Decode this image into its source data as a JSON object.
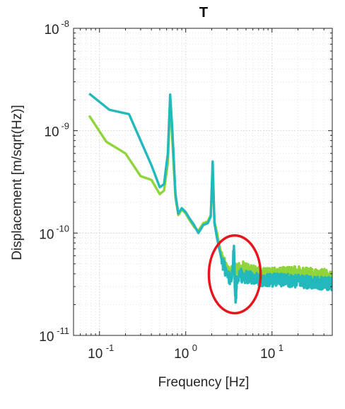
{
  "chart_data": {
    "type": "line",
    "title": "T",
    "xlabel": "Frequency [Hz]",
    "ylabel": "Displacement [m/sqrt(Hz)]",
    "x_scale": "log",
    "y_scale": "log",
    "xlim": [
      0.05,
      50
    ],
    "ylim": [
      1e-11,
      1e-08
    ],
    "grid": true,
    "minor_grid": true,
    "x_ticks": [
      {
        "value": 0.1,
        "base": "10",
        "exp": "-1"
      },
      {
        "value": 1,
        "base": "10",
        "exp": "0"
      },
      {
        "value": 10,
        "base": "10",
        "exp": "1"
      }
    ],
    "y_ticks": [
      {
        "value": 1e-11,
        "base": "10",
        "exp": "-11"
      },
      {
        "value": 1e-10,
        "base": "10",
        "exp": "-10"
      },
      {
        "value": 1e-09,
        "base": "10",
        "exp": "-9"
      },
      {
        "value": 1e-08,
        "base": "10",
        "exp": "-8"
      }
    ],
    "series": [
      {
        "color": "#8fd43a",
        "points": [
          [
            0.076,
            1.4e-09
          ],
          [
            0.12,
            7.8e-10
          ],
          [
            0.2,
            6e-10
          ],
          [
            0.3,
            3.6e-10
          ],
          [
            0.4,
            3.3e-10
          ],
          [
            0.5,
            2.4e-10
          ],
          [
            0.56,
            2.6e-10
          ],
          [
            0.62,
            4.8e-10
          ],
          [
            0.66,
            1.9e-09
          ],
          [
            0.7,
            8e-10
          ],
          [
            0.76,
            2.2e-10
          ],
          [
            0.82,
            1.5e-10
          ],
          [
            0.9,
            1.7e-10
          ],
          [
            1.0,
            1.55e-10
          ],
          [
            1.1,
            1.35e-10
          ],
          [
            1.25,
            1.15e-10
          ],
          [
            1.4,
            1.05e-10
          ],
          [
            1.6,
            1.25e-10
          ],
          [
            1.8,
            1.3e-10
          ],
          [
            1.95,
            1.5e-10
          ],
          [
            2.05,
            4.2e-10
          ],
          [
            2.15,
            1.3e-10
          ],
          [
            2.3,
            1e-10
          ],
          [
            2.6,
            6e-11
          ],
          [
            3.0,
            4.5e-11
          ],
          [
            3.3,
            4.2e-11
          ],
          [
            3.6,
            4.4e-11
          ],
          [
            4.0,
            4.3e-11
          ],
          [
            4.5,
            4.6e-11
          ],
          [
            5.0,
            4.4e-11
          ],
          [
            6.0,
            4.2e-11
          ],
          [
            8.0,
            3.9e-11
          ],
          [
            12.0,
            4e-11
          ],
          [
            20.0,
            4.1e-11
          ],
          [
            30.0,
            3.9e-11
          ],
          [
            50.0,
            3.8e-11
          ]
        ]
      },
      {
        "color": "#22b8bc",
        "points": [
          [
            0.076,
            2.3e-09
          ],
          [
            0.13,
            1.6e-09
          ],
          [
            0.22,
            1.45e-09
          ],
          [
            0.3,
            8e-10
          ],
          [
            0.4,
            4.6e-10
          ],
          [
            0.5,
            2.8e-10
          ],
          [
            0.56,
            3e-10
          ],
          [
            0.62,
            6e-10
          ],
          [
            0.66,
            2.25e-09
          ],
          [
            0.7,
            1e-09
          ],
          [
            0.76,
            2.4e-10
          ],
          [
            0.82,
            1.55e-10
          ],
          [
            0.9,
            1.75e-10
          ],
          [
            1.0,
            1.6e-10
          ],
          [
            1.1,
            1.4e-10
          ],
          [
            1.25,
            1.2e-10
          ],
          [
            1.4,
            1e-10
          ],
          [
            1.6,
            1.2e-10
          ],
          [
            1.8,
            1.25e-10
          ],
          [
            1.95,
            1.45e-10
          ],
          [
            2.05,
            5e-10
          ],
          [
            2.15,
            1.25e-10
          ],
          [
            2.3,
            9e-11
          ],
          [
            2.6,
            5.5e-11
          ],
          [
            3.0,
            4e-11
          ],
          [
            3.3,
            3.5e-11
          ],
          [
            3.5,
            4.5e-11
          ],
          [
            3.62,
            7.5e-11
          ],
          [
            3.7,
            3e-11
          ],
          [
            3.8,
            2.2e-11
          ],
          [
            3.9,
            3.4e-11
          ],
          [
            4.2,
            4.1e-11
          ],
          [
            4.6,
            3.7e-11
          ],
          [
            5.0,
            3.8e-11
          ],
          [
            6.0,
            3.6e-11
          ],
          [
            8.0,
            3.4e-11
          ],
          [
            12.0,
            3.5e-11
          ],
          [
            20.0,
            3.4e-11
          ],
          [
            30.0,
            3.3e-11
          ],
          [
            50.0,
            3.2e-11
          ]
        ]
      }
    ],
    "annotations": [
      {
        "type": "ellipse",
        "color": "#e8141c",
        "center": [
          3.7,
          3.95e-11
        ],
        "rx_decades": 0.3,
        "ry_decades": 0.38
      }
    ]
  }
}
